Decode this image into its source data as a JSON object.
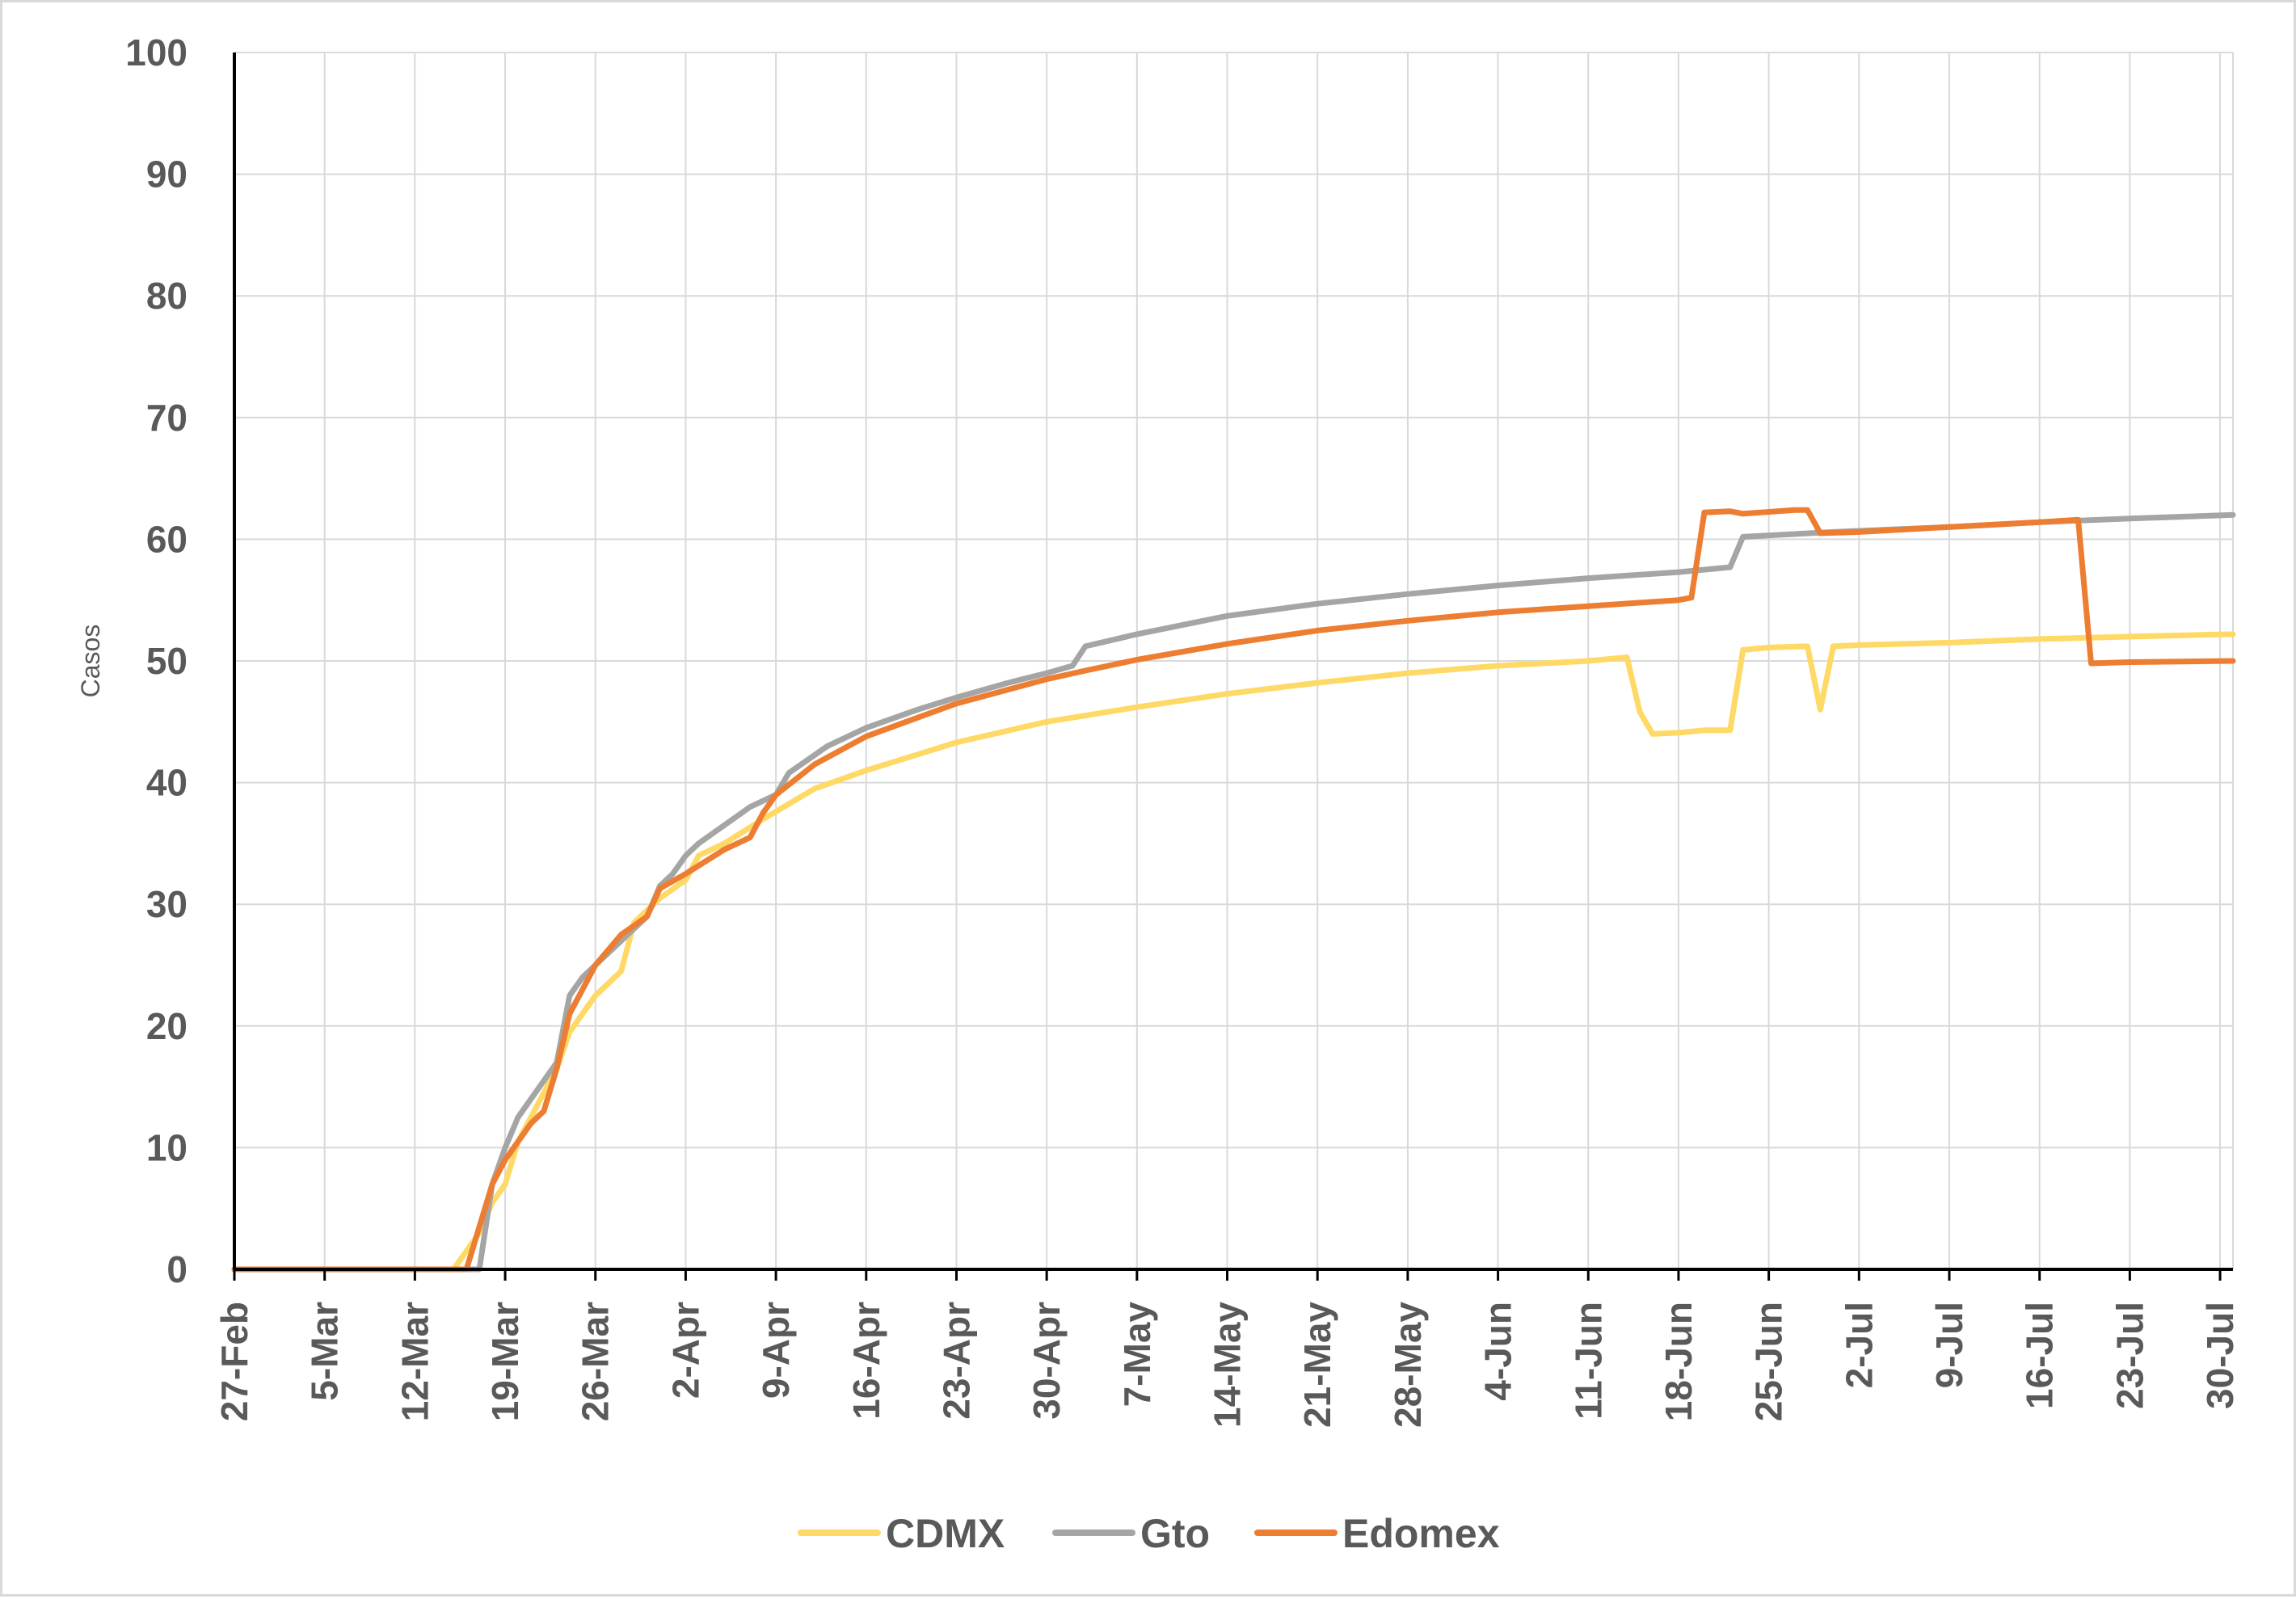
{
  "chart_data": {
    "type": "line",
    "title": "",
    "xlabel": "",
    "ylabel": "Casos",
    "ylim": [
      0,
      100
    ],
    "yticks": [
      0,
      10,
      20,
      30,
      40,
      50,
      60,
      70,
      80,
      90,
      100
    ],
    "xlim": [
      "2020-02-27",
      "2020-07-31"
    ],
    "xtick_labels": [
      "27-Feb",
      "5-Mar",
      "12-Mar",
      "19-Mar",
      "26-Mar",
      "2-Apr",
      "9-Apr",
      "16-Apr",
      "23-Apr",
      "30-Apr",
      "7-May",
      "14-May",
      "21-May",
      "28-May",
      "4-Jun",
      "11-Jun",
      "18-Jun",
      "25-Jun",
      "2-Jul",
      "9-Jul",
      "16-Jul",
      "23-Jul",
      "30-Jul"
    ],
    "xtick_dates": [
      "2020-02-27",
      "2020-03-05",
      "2020-03-12",
      "2020-03-19",
      "2020-03-26",
      "2020-04-02",
      "2020-04-09",
      "2020-04-16",
      "2020-04-23",
      "2020-04-30",
      "2020-05-07",
      "2020-05-14",
      "2020-05-21",
      "2020-05-28",
      "2020-06-04",
      "2020-06-11",
      "2020-06-18",
      "2020-06-25",
      "2020-07-02",
      "2020-07-09",
      "2020-07-16",
      "2020-07-23",
      "2020-07-30"
    ],
    "grid": true,
    "legend_position": "bottom",
    "series": [
      {
        "name": "CDMX",
        "color": "#ffd966",
        "points": [
          [
            "2020-02-27",
            0
          ],
          [
            "2020-03-15",
            0
          ],
          [
            "2020-03-16",
            1.5
          ],
          [
            "2020-03-17",
            3
          ],
          [
            "2020-03-18",
            5.5
          ],
          [
            "2020-03-19",
            7
          ],
          [
            "2020-03-20",
            10.5
          ],
          [
            "2020-03-21",
            12.5
          ],
          [
            "2020-03-22",
            14.5
          ],
          [
            "2020-03-23",
            16.5
          ],
          [
            "2020-03-24",
            19.5
          ],
          [
            "2020-03-25",
            21
          ],
          [
            "2020-03-26",
            22.5
          ],
          [
            "2020-03-27",
            23.5
          ],
          [
            "2020-03-28",
            24.5
          ],
          [
            "2020-03-29",
            28.5
          ],
          [
            "2020-03-31",
            30.5
          ],
          [
            "2020-04-02",
            32
          ],
          [
            "2020-04-03",
            34
          ],
          [
            "2020-04-05",
            35
          ],
          [
            "2020-04-08",
            37
          ],
          [
            "2020-04-12",
            39.5
          ],
          [
            "2020-04-16",
            41
          ],
          [
            "2020-04-23",
            43.3
          ],
          [
            "2020-04-30",
            45
          ],
          [
            "2020-05-07",
            46.2
          ],
          [
            "2020-05-14",
            47.3
          ],
          [
            "2020-05-21",
            48.2
          ],
          [
            "2020-05-28",
            49
          ],
          [
            "2020-06-04",
            49.6
          ],
          [
            "2020-06-11",
            50
          ],
          [
            "2020-06-14",
            50.3
          ],
          [
            "2020-06-15",
            45.8
          ],
          [
            "2020-06-16",
            44
          ],
          [
            "2020-06-18",
            44.1
          ],
          [
            "2020-06-20",
            44.3
          ],
          [
            "2020-06-22",
            44.3
          ],
          [
            "2020-06-23",
            50.9
          ],
          [
            "2020-06-25",
            51.1
          ],
          [
            "2020-06-28",
            51.2
          ],
          [
            "2020-06-29",
            46
          ],
          [
            "2020-06-30",
            51.2
          ],
          [
            "2020-07-02",
            51.3
          ],
          [
            "2020-07-09",
            51.5
          ],
          [
            "2020-07-16",
            51.8
          ],
          [
            "2020-07-23",
            52
          ],
          [
            "2020-07-31",
            52.2
          ]
        ]
      },
      {
        "name": "Gto",
        "color": "#a5a5a5",
        "points": [
          [
            "2020-02-27",
            0
          ],
          [
            "2020-03-17",
            0
          ],
          [
            "2020-03-18",
            7
          ],
          [
            "2020-03-19",
            10
          ],
          [
            "2020-03-20",
            12.5
          ],
          [
            "2020-03-21",
            14
          ],
          [
            "2020-03-22",
            15.5
          ],
          [
            "2020-03-23",
            17
          ],
          [
            "2020-03-24",
            22.5
          ],
          [
            "2020-03-25",
            24
          ],
          [
            "2020-03-26",
            25
          ],
          [
            "2020-03-28",
            27
          ],
          [
            "2020-03-30",
            29
          ],
          [
            "2020-03-31",
            31.5
          ],
          [
            "2020-04-01",
            32.5
          ],
          [
            "2020-04-02",
            34
          ],
          [
            "2020-04-03",
            35
          ],
          [
            "2020-04-05",
            36.5
          ],
          [
            "2020-04-07",
            38
          ],
          [
            "2020-04-09",
            39
          ],
          [
            "2020-04-10",
            40.8
          ],
          [
            "2020-04-13",
            43
          ],
          [
            "2020-04-16",
            44.5
          ],
          [
            "2020-04-20",
            46
          ],
          [
            "2020-04-23",
            47
          ],
          [
            "2020-04-27",
            48.2
          ],
          [
            "2020-04-30",
            49
          ],
          [
            "2020-05-02",
            49.6
          ],
          [
            "2020-05-03",
            51.2
          ],
          [
            "2020-05-07",
            52.2
          ],
          [
            "2020-05-14",
            53.7
          ],
          [
            "2020-05-21",
            54.7
          ],
          [
            "2020-05-28",
            55.5
          ],
          [
            "2020-06-04",
            56.2
          ],
          [
            "2020-06-11",
            56.8
          ],
          [
            "2020-06-18",
            57.3
          ],
          [
            "2020-06-22",
            57.7
          ],
          [
            "2020-06-23",
            60.2
          ],
          [
            "2020-06-30",
            60.6
          ],
          [
            "2020-07-09",
            61
          ],
          [
            "2020-07-16",
            61.4
          ],
          [
            "2020-07-23",
            61.7
          ],
          [
            "2020-07-31",
            62
          ]
        ]
      },
      {
        "name": "Edomex",
        "color": "#ed7d31",
        "points": [
          [
            "2020-02-27",
            0
          ],
          [
            "2020-03-16",
            0
          ],
          [
            "2020-03-18",
            7
          ],
          [
            "2020-03-19",
            9
          ],
          [
            "2020-03-20",
            10.5
          ],
          [
            "2020-03-21",
            12
          ],
          [
            "2020-03-22",
            13
          ],
          [
            "2020-03-23",
            16.5
          ],
          [
            "2020-03-24",
            21
          ],
          [
            "2020-03-25",
            23
          ],
          [
            "2020-03-26",
            25
          ],
          [
            "2020-03-28",
            27.5
          ],
          [
            "2020-03-30",
            29
          ],
          [
            "2020-03-31",
            31.3
          ],
          [
            "2020-04-02",
            32.5
          ],
          [
            "2020-04-05",
            34.5
          ],
          [
            "2020-04-07",
            35.5
          ],
          [
            "2020-04-08",
            37.5
          ],
          [
            "2020-04-09",
            39
          ],
          [
            "2020-04-12",
            41.5
          ],
          [
            "2020-04-16",
            43.8
          ],
          [
            "2020-04-23",
            46.5
          ],
          [
            "2020-04-30",
            48.5
          ],
          [
            "2020-05-03",
            49.2
          ],
          [
            "2020-05-07",
            50.1
          ],
          [
            "2020-05-14",
            51.4
          ],
          [
            "2020-05-21",
            52.5
          ],
          [
            "2020-05-28",
            53.3
          ],
          [
            "2020-06-04",
            54
          ],
          [
            "2020-06-11",
            54.5
          ],
          [
            "2020-06-18",
            55
          ],
          [
            "2020-06-19",
            55.2
          ],
          [
            "2020-06-20",
            62.2
          ],
          [
            "2020-06-22",
            62.3
          ],
          [
            "2020-06-23",
            62.1
          ],
          [
            "2020-06-27",
            62.4
          ],
          [
            "2020-06-28",
            62.4
          ],
          [
            "2020-06-29",
            60.5
          ],
          [
            "2020-07-02",
            60.6
          ],
          [
            "2020-07-09",
            61
          ],
          [
            "2020-07-16",
            61.4
          ],
          [
            "2020-07-19",
            61.6
          ],
          [
            "2020-07-20",
            49.8
          ],
          [
            "2020-07-23",
            49.9
          ],
          [
            "2020-07-31",
            50
          ]
        ]
      }
    ]
  }
}
